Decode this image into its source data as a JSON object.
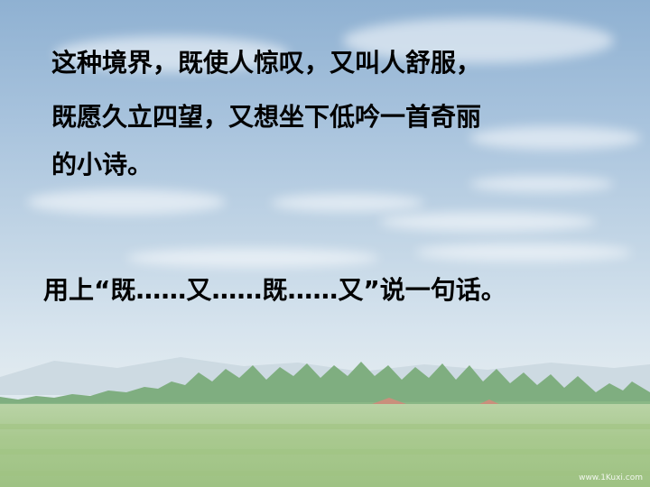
{
  "slide": {
    "passage": [
      "这种境界，既使人惊叹，又叫人舒服，",
      "既愿久立四望，又想坐下低吟一首奇丽",
      "的小诗。"
    ],
    "prompt": "用上“既……又……既……又”说一句话。",
    "watermark": "www.1Kuxi.com"
  }
}
